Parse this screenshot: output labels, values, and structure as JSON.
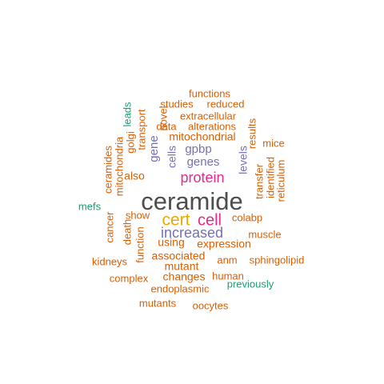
{
  "colors": {
    "dark_gray": "#4d4d4d",
    "orange": "#d95f02",
    "purple": "#7570b3",
    "magenta": "#e7298a",
    "gold": "#e6ab02",
    "teal": "#1b9e77"
  },
  "words": [
    {
      "text": "ceramide",
      "color": "dark_gray"
    },
    {
      "text": "cert",
      "color": "gold"
    },
    {
      "text": "cell",
      "color": "magenta"
    },
    {
      "text": "protein",
      "color": "magenta"
    },
    {
      "text": "increased",
      "color": "purple"
    },
    {
      "text": "gpbp",
      "color": "purple"
    },
    {
      "text": "genes",
      "color": "purple"
    },
    {
      "text": "cells",
      "color": "purple"
    },
    {
      "text": "gene",
      "color": "purple"
    },
    {
      "text": "levels",
      "color": "purple"
    },
    {
      "text": "expression",
      "color": "orange"
    },
    {
      "text": "mitochondrial",
      "color": "orange"
    },
    {
      "text": "alterations",
      "color": "orange"
    },
    {
      "text": "data",
      "color": "orange"
    },
    {
      "text": "extracellular",
      "color": "orange"
    },
    {
      "text": "studies",
      "color": "orange"
    },
    {
      "text": "reduced",
      "color": "orange"
    },
    {
      "text": "functions",
      "color": "orange"
    },
    {
      "text": "novel",
      "color": "orange"
    },
    {
      "text": "transport",
      "color": "orange"
    },
    {
      "text": "golgi",
      "color": "orange"
    },
    {
      "text": "mitochondria",
      "color": "orange"
    },
    {
      "text": "ceramides",
      "color": "orange"
    },
    {
      "text": "also",
      "color": "orange"
    },
    {
      "text": "show",
      "color": "orange"
    },
    {
      "text": "using",
      "color": "orange"
    },
    {
      "text": "colabp",
      "color": "orange"
    },
    {
      "text": "muscle",
      "color": "orange"
    },
    {
      "text": "associated",
      "color": "orange"
    },
    {
      "text": "anm",
      "color": "orange"
    },
    {
      "text": "sphingolipid",
      "color": "orange"
    },
    {
      "text": "mutant",
      "color": "orange"
    },
    {
      "text": "changes",
      "color": "orange"
    },
    {
      "text": "human",
      "color": "orange"
    },
    {
      "text": "complex",
      "color": "orange"
    },
    {
      "text": "kidneys",
      "color": "orange"
    },
    {
      "text": "endoplasmic",
      "color": "orange"
    },
    {
      "text": "mutants",
      "color": "orange"
    },
    {
      "text": "oocytes",
      "color": "orange"
    },
    {
      "text": "cancer",
      "color": "orange"
    },
    {
      "text": "death",
      "color": "orange"
    },
    {
      "text": "function",
      "color": "orange"
    },
    {
      "text": "results",
      "color": "orange"
    },
    {
      "text": "mice",
      "color": "orange"
    },
    {
      "text": "transfer",
      "color": "orange"
    },
    {
      "text": "identified",
      "color": "orange"
    },
    {
      "text": "reticulum",
      "color": "orange"
    },
    {
      "text": "leads",
      "color": "teal"
    },
    {
      "text": "mefs",
      "color": "teal"
    },
    {
      "text": "previously",
      "color": "teal"
    }
  ]
}
